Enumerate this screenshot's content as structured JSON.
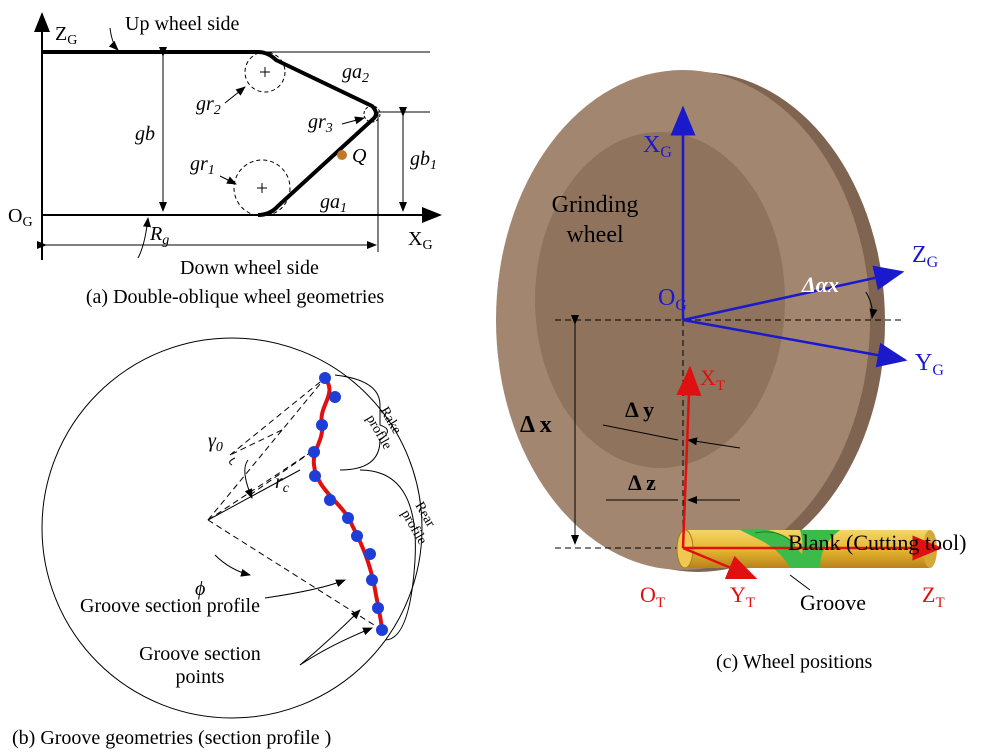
{
  "panel_a": {
    "caption": "(a) Double-oblique wheel geometries",
    "labels": [
      {
        "text": "Z",
        "sub": "G"
      },
      {
        "text": "Up wheel side"
      },
      {
        "text": "gb"
      },
      {
        "text": "gr",
        "sub": "2"
      },
      {
        "text": "ga",
        "sub": "2"
      },
      {
        "text": "gr",
        "sub": "3"
      },
      {
        "text": "gb",
        "sub": "1"
      },
      {
        "text": "gr",
        "sub": "1"
      },
      {
        "text": "Q"
      },
      {
        "text": "ga",
        "sub": "1"
      },
      {
        "text": "O",
        "sub": "G"
      },
      {
        "text": "X",
        "sub": "G"
      },
      {
        "text": "R",
        "sub": "g"
      },
      {
        "text": "Down wheel side"
      }
    ]
  },
  "panel_b": {
    "caption": "(b) Groove geometries (section profile  )",
    "labels": [
      {
        "text": "γ",
        "sub": "0"
      },
      {
        "text": "r",
        "sub": "c"
      },
      {
        "text": "ϕ"
      },
      {
        "lines": [
          "Rake",
          "profile"
        ]
      },
      {
        "lines": [
          "Rear",
          "profile"
        ]
      },
      {
        "lines": [
          "Groove section profile"
        ]
      },
      {
        "lines": [
          "Groove section",
          "points"
        ]
      }
    ]
  },
  "panel_c": {
    "caption": "(c)  Wheel positions",
    "labels": [
      {
        "text": "X",
        "sub": "G"
      },
      {
        "lines": [
          "Grinding",
          "wheel"
        ]
      },
      {
        "text": "Z",
        "sub": "G"
      },
      {
        "text": "Δαx"
      },
      {
        "text": "O",
        "sub": "G"
      },
      {
        "text": "Y",
        "sub": "G"
      },
      {
        "text": "X",
        "sub": "T"
      },
      {
        "text": "Δ y"
      },
      {
        "text": "Δ x"
      },
      {
        "text": "Δ z"
      },
      {
        "text": "Blank (Cutting tool)"
      },
      {
        "text": "O",
        "sub": "T"
      },
      {
        "text": "Y",
        "sub": "T"
      },
      {
        "text": "Groove"
      },
      {
        "text": "Z",
        "sub": "T"
      }
    ]
  }
}
